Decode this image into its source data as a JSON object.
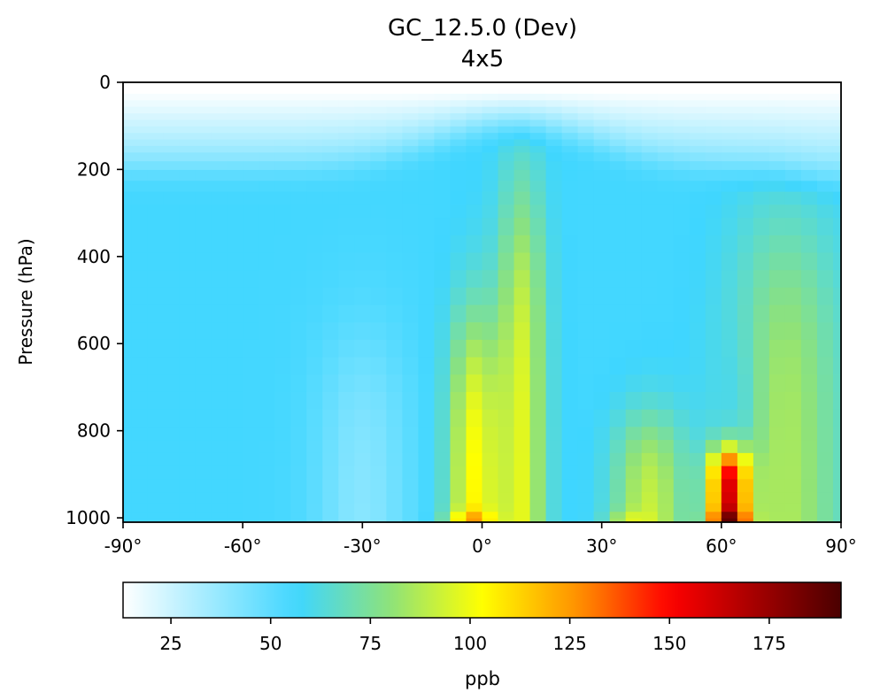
{
  "chart_data": {
    "type": "heatmap",
    "title": "GC_12.5.0 (Dev)",
    "subtitle": "4x5",
    "xlabel": "",
    "ylabel": "Pressure (hPa)",
    "xlim": [
      -90,
      90
    ],
    "ylim": [
      1010,
      0
    ],
    "x_ticks": [
      {
        "value": -90,
        "label": "-90°"
      },
      {
        "value": -60,
        "label": "-60°"
      },
      {
        "value": -30,
        "label": "-30°"
      },
      {
        "value": 0,
        "label": "0°"
      },
      {
        "value": 30,
        "label": "30°"
      },
      {
        "value": 60,
        "label": "60°"
      },
      {
        "value": 90,
        "label": "90°"
      }
    ],
    "y_ticks": [
      {
        "value": 0,
        "label": "0"
      },
      {
        "value": 200,
        "label": "200"
      },
      {
        "value": 400,
        "label": "400"
      },
      {
        "value": 600,
        "label": "600"
      },
      {
        "value": 800,
        "label": "800"
      },
      {
        "value": 1000,
        "label": "1000"
      }
    ],
    "grid": false,
    "latitude_edges": [
      -90,
      -88,
      -84,
      -80,
      -76,
      -72,
      -68,
      -64,
      -60,
      -56,
      -52,
      -48,
      -44,
      -40,
      -36,
      -32,
      -28,
      -24,
      -20,
      -16,
      -12,
      -8,
      -4,
      0,
      4,
      8,
      12,
      16,
      20,
      24,
      28,
      32,
      36,
      40,
      44,
      48,
      52,
      56,
      60,
      64,
      68,
      72,
      76,
      80,
      84,
      88,
      90
    ],
    "pressure_edges_hPa": [
      1010,
      1000,
      985,
      965,
      940,
      910,
      880,
      850,
      820,
      790,
      750,
      710,
      670,
      630,
      590,
      550,
      510,
      470,
      430,
      390,
      350,
      310,
      280,
      250,
      225,
      200,
      180,
      160,
      145,
      130,
      115,
      100,
      85,
      70,
      55,
      40,
      25,
      12,
      0
    ],
    "values_ppb_estimated": "46 latitude bands x 38 pressure layers (surface to top), estimated from the image; generated row-by-row in the page script",
    "colorbar": {
      "label": "ppb",
      "colormap": "WhGrYlRd",
      "vmin": 13,
      "vmax": 193,
      "ticks": [
        {
          "value": 25,
          "label": "25"
        },
        {
          "value": 50,
          "label": "50"
        },
        {
          "value": 75,
          "label": "75"
        },
        {
          "value": 100,
          "label": "100"
        },
        {
          "value": 125,
          "label": "125"
        },
        {
          "value": 150,
          "label": "150"
        },
        {
          "value": 175,
          "label": "175"
        }
      ],
      "orientation": "horizontal",
      "placement": "bottom"
    },
    "colors": {
      "white": "#ffffff",
      "sky": "#3fd6ff",
      "green": "#8ee27a",
      "yellow": "#ffff00",
      "orange": "#ff8c00",
      "red": "#ff0000",
      "darkred": "#4a0000"
    }
  }
}
